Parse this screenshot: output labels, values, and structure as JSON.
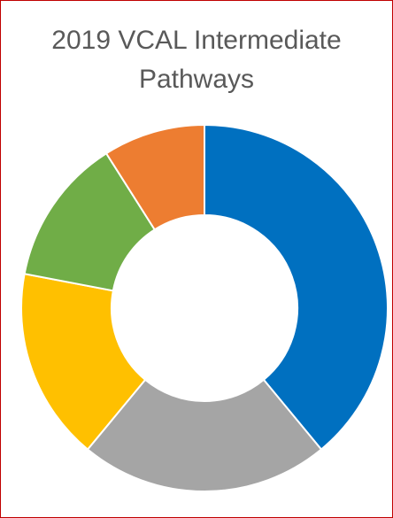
{
  "chart_data": {
    "type": "donut",
    "title": "2019 VCAL Intermediate Pathways",
    "values": [
      39,
      22,
      17,
      13,
      9
    ],
    "colors": [
      "#0070c0",
      "#a5a5a5",
      "#ffc000",
      "#70ad47",
      "#ed7d31"
    ]
  }
}
